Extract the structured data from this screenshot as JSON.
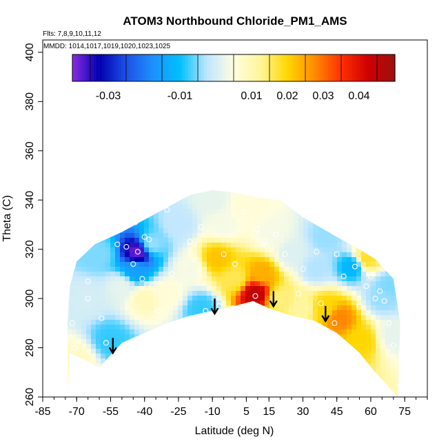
{
  "chart_data": {
    "type": "heatmap",
    "title": "ATOM3 Northbound Chloride_PM1_AMS",
    "notes": {
      "flights": "Flts: 7,8,9,10,11,12",
      "dates": "MMDD: 1014,1017,1019,1020,1023,1025"
    },
    "xlabel": "Latitude (deg N)",
    "ylabel": "Theta (C)",
    "xlim": [
      -85,
      85
    ],
    "ylim": [
      260,
      405
    ],
    "x_ticks": [
      -85,
      -70,
      -55,
      -40,
      -25,
      -10,
      5,
      15,
      30,
      45,
      60,
      75
    ],
    "x_minor_step": 5,
    "y_ticks": [
      260,
      280,
      300,
      320,
      340,
      360,
      380,
      400
    ],
    "colorbar": {
      "range": [
        -0.04,
        0.05
      ],
      "tick_values": [
        -0.03,
        -0.01,
        0.01,
        0.02,
        0.03,
        0.04
      ],
      "tick_labels": [
        "-0.03",
        "-0.01",
        "0.01",
        "0.02",
        "0.03",
        "0.04"
      ],
      "colors": [
        "#8a2be2",
        "#0000b0",
        "#1e50e6",
        "#1e90ff",
        "#00bfff",
        "#bfe6ff",
        "#fffde0",
        "#fff59a",
        "#ffd700",
        "#ff8c00",
        "#ff3000",
        "#d00000",
        "#9b1010"
      ]
    },
    "coverage_lower": [
      [
        -73,
        278
      ],
      [
        -60,
        272
      ],
      [
        -50,
        282
      ],
      [
        -40,
        286
      ],
      [
        -30,
        290
      ],
      [
        -20,
        293
      ],
      [
        -10,
        295
      ],
      [
        0,
        297
      ],
      [
        8,
        299
      ],
      [
        15,
        296
      ],
      [
        25,
        293
      ],
      [
        35,
        291
      ],
      [
        45,
        286
      ],
      [
        55,
        278
      ],
      [
        62,
        270
      ],
      [
        67,
        265
      ],
      [
        72,
        260
      ],
      [
        -74,
        260
      ]
    ],
    "coverage_upper": [
      [
        -74,
        290
      ],
      [
        -73,
        305
      ],
      [
        -70,
        315
      ],
      [
        -62,
        322
      ],
      [
        -50,
        327
      ],
      [
        -40,
        332
      ],
      [
        -30,
        337
      ],
      [
        -20,
        342
      ],
      [
        -10,
        344
      ],
      [
        0,
        343
      ],
      [
        10,
        341
      ],
      [
        20,
        340
      ],
      [
        30,
        333
      ],
      [
        45,
        325
      ],
      [
        55,
        320
      ],
      [
        62,
        316
      ],
      [
        70,
        308
      ],
      [
        73,
        290
      ]
    ],
    "field_points": [
      {
        "x": -70,
        "y": 275,
        "v": 0.008
      },
      {
        "x": -66,
        "y": 300,
        "v": 0.0
      },
      {
        "x": -60,
        "y": 318,
        "v": -0.005
      },
      {
        "x": -55,
        "y": 283,
        "v": -0.008
      },
      {
        "x": -50,
        "y": 305,
        "v": 0.002
      },
      {
        "x": -43,
        "y": 319,
        "v": -0.038
      },
      {
        "x": -44,
        "y": 311,
        "v": -0.015
      },
      {
        "x": -40,
        "y": 300,
        "v": 0.009
      },
      {
        "x": -37,
        "y": 322,
        "v": -0.004
      },
      {
        "x": -30,
        "y": 302,
        "v": 0.006
      },
      {
        "x": -25,
        "y": 330,
        "v": -0.002
      },
      {
        "x": -20,
        "y": 312,
        "v": 0.004
      },
      {
        "x": -15,
        "y": 296,
        "v": -0.008
      },
      {
        "x": -8,
        "y": 316,
        "v": 0.022
      },
      {
        "x": -5,
        "y": 330,
        "v": 0.004
      },
      {
        "x": 0,
        "y": 308,
        "v": 0.016
      },
      {
        "x": 5,
        "y": 337,
        "v": 0.006
      },
      {
        "x": 9,
        "y": 302,
        "v": 0.045
      },
      {
        "x": 12,
        "y": 310,
        "v": 0.024
      },
      {
        "x": 16,
        "y": 326,
        "v": 0.004
      },
      {
        "x": 20,
        "y": 300,
        "v": 0.014
      },
      {
        "x": 25,
        "y": 318,
        "v": 0.001
      },
      {
        "x": 30,
        "y": 296,
        "v": 0.012
      },
      {
        "x": 36,
        "y": 312,
        "v": -0.003
      },
      {
        "x": 40,
        "y": 296,
        "v": 0.02
      },
      {
        "x": 46,
        "y": 292,
        "v": 0.028
      },
      {
        "x": 52,
        "y": 313,
        "v": -0.012
      },
      {
        "x": 56,
        "y": 283,
        "v": 0.02
      },
      {
        "x": 58,
        "y": 316,
        "v": 0.018
      },
      {
        "x": 65,
        "y": 300,
        "v": -0.004
      },
      {
        "x": 70,
        "y": 285,
        "v": 0.002
      },
      {
        "x": -60,
        "y": 340,
        "v": -0.005
      },
      {
        "x": -10,
        "y": 340,
        "v": 0.002
      },
      {
        "x": 40,
        "y": 325,
        "v": -0.004
      },
      {
        "x": 68,
        "y": 305,
        "v": -0.005
      }
    ],
    "obs_points": [
      [
        -72,
        290
      ],
      [
        -71,
        280
      ],
      [
        -65,
        307
      ],
      [
        -65,
        300
      ],
      [
        -59,
        292
      ],
      [
        -57,
        282
      ],
      [
        -52,
        322
      ],
      [
        -48,
        321
      ],
      [
        -43,
        319
      ],
      [
        -41,
        308
      ],
      [
        -45,
        314
      ],
      [
        -44,
        331
      ],
      [
        -38,
        324
      ],
      [
        -34,
        295
      ],
      [
        -30,
        336
      ],
      [
        -28,
        310
      ],
      [
        -20,
        323
      ],
      [
        -15,
        329
      ],
      [
        -13,
        295
      ],
      [
        -7,
        297
      ],
      [
        -5,
        318
      ],
      [
        -1,
        296
      ],
      [
        4,
        335
      ],
      [
        9,
        301
      ],
      [
        10,
        328
      ],
      [
        13,
        323
      ],
      [
        16,
        342
      ],
      [
        18,
        326
      ],
      [
        22,
        318
      ],
      [
        28,
        302
      ],
      [
        30,
        312
      ],
      [
        36,
        319
      ],
      [
        38,
        298
      ],
      [
        44,
        290
      ],
      [
        48,
        309
      ],
      [
        53,
        313
      ],
      [
        55,
        297
      ],
      [
        58,
        305
      ],
      [
        60,
        309
      ],
      [
        62,
        300
      ],
      [
        64,
        303
      ],
      [
        66,
        299
      ],
      [
        68,
        290
      ],
      [
        70,
        281
      ],
      [
        -40,
        325
      ],
      [
        0,
        314
      ],
      [
        45,
        318
      ],
      [
        25,
        340
      ]
    ],
    "arrows": [
      [
        -54,
        284
      ],
      [
        -9,
        300
      ],
      [
        17,
        303
      ],
      [
        40,
        297
      ]
    ],
    "grid": false
  }
}
